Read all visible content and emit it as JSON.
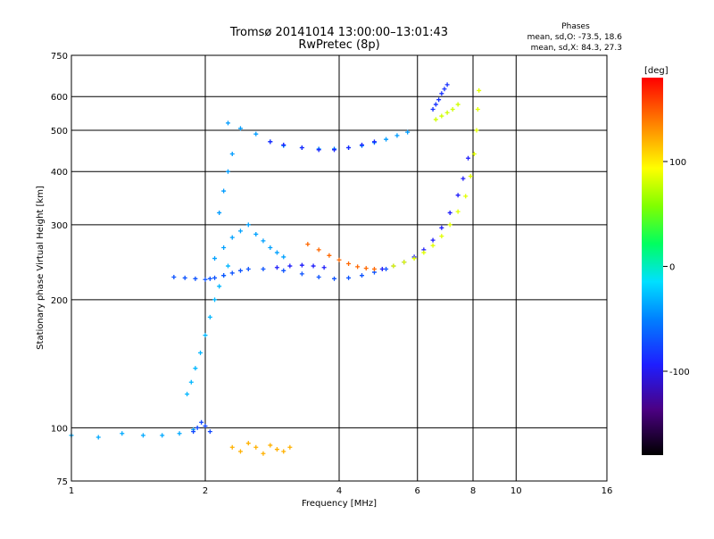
{
  "chart_data": {
    "type": "scatter",
    "title": "Tromsø 20141014 13:00:00–13:01:43",
    "subtitle": "RwPretec (8p)",
    "xlabel": "Frequency [MHz]",
    "ylabel": "Stationary phase Virtual Height [km]",
    "x_scale": "log",
    "y_scale": "log",
    "xlim": [
      1,
      16
    ],
    "ylim": [
      75,
      750
    ],
    "grid": true,
    "x_ticks": [
      "1",
      "2",
      "4",
      "6",
      "8",
      "10",
      "16"
    ],
    "x_tick_values": [
      1,
      2,
      4,
      6,
      8,
      10,
      16
    ],
    "y_ticks": [
      "75",
      "100",
      "200",
      "300",
      "400",
      "500",
      "600",
      "750"
    ],
    "y_tick_values": [
      75,
      100,
      200,
      300,
      400,
      500,
      600,
      750
    ],
    "phases_info": {
      "heading": "Phases",
      "line1": "mean, sd,O: -73.5, 18.6",
      "line2": "mean, sd,X:  84.3, 27.3"
    },
    "colorbar": {
      "label": "[deg]",
      "range": [
        -180,
        180
      ],
      "ticks": [
        "100",
        "0",
        "-100"
      ],
      "tick_values": [
        100,
        0,
        -100
      ]
    },
    "trace_groups": [
      {
        "x": [
          1.0,
          1.15,
          1.3,
          1.45,
          1.6,
          1.75,
          1.88
        ],
        "y": [
          96,
          95,
          97,
          96,
          96,
          97,
          99
        ],
        "phase": -35
      },
      {
        "x": [
          1.88,
          1.92,
          1.96,
          2.0,
          2.05
        ],
        "y": [
          98,
          100,
          103,
          101,
          98
        ],
        "phase": -75
      },
      {
        "x": [
          1.82,
          1.86,
          1.9,
          1.95,
          2.0,
          2.05,
          2.1,
          2.15,
          2.2,
          2.25
        ],
        "y": [
          120,
          128,
          138,
          150,
          165,
          182,
          200,
          215,
          228,
          240
        ],
        "phase": -30
      },
      {
        "x": [
          2.1,
          2.2,
          2.3,
          2.4,
          2.5,
          2.6,
          2.7,
          2.8,
          2.9,
          3.0
        ],
        "y": [
          250,
          265,
          280,
          290,
          300,
          285,
          275,
          265,
          258,
          252
        ],
        "phase": -38
      },
      {
        "x": [
          2.15,
          2.2,
          2.25,
          2.3
        ],
        "y": [
          320,
          360,
          400,
          440
        ],
        "phase": -40
      },
      {
        "x": [
          2.25,
          2.4,
          2.6,
          2.8,
          3.0,
          3.3,
          3.6,
          3.9,
          4.2,
          4.5,
          4.8,
          5.1,
          5.4,
          5.7
        ],
        "y": [
          520,
          505,
          490,
          470,
          460,
          455,
          452,
          452,
          455,
          460,
          468,
          476,
          486,
          495
        ],
        "phase": -40
      },
      {
        "x": [
          2.8,
          3.0,
          3.3,
          3.6,
          3.9,
          4.2,
          4.5,
          4.8
        ],
        "y": [
          470,
          462,
          455,
          450,
          450,
          455,
          462,
          470
        ],
        "phase": -90
      },
      {
        "x": [
          1.7,
          1.8,
          1.9,
          2.0,
          2.05,
          2.1,
          2.2,
          2.3,
          2.4,
          2.5,
          2.7,
          3.0,
          3.3,
          3.6,
          3.9,
          4.2,
          4.5,
          4.8,
          5.1
        ],
        "y": [
          226,
          225,
          224,
          223,
          224,
          225,
          228,
          231,
          234,
          236,
          236,
          234,
          230,
          226,
          224,
          225,
          228,
          232,
          236
        ],
        "phase": -70
      },
      {
        "x": [
          2.9,
          3.1,
          3.3,
          3.5,
          3.7
        ],
        "y": [
          238,
          240,
          241,
          240,
          238
        ],
        "phase": -95
      },
      {
        "x": [
          3.4,
          3.6,
          3.8,
          4.0,
          4.2,
          4.4,
          4.6,
          4.8
        ],
        "y": [
          270,
          262,
          254,
          248,
          243,
          239,
          237,
          236
        ],
        "phase": 145
      },
      {
        "x": [
          5.0,
          5.3,
          5.6,
          5.9,
          6.2,
          6.5,
          6.8,
          7.1,
          7.4,
          7.6,
          7.8
        ],
        "y": [
          236,
          240,
          245,
          252,
          262,
          276,
          295,
          320,
          352,
          385,
          430
        ],
        "phase": -95
      },
      {
        "x": [
          5.3,
          5.6,
          5.9,
          6.2,
          6.5,
          6.8,
          7.1,
          7.4,
          7.7,
          7.9,
          8.05,
          8.15,
          8.2,
          8.25
        ],
        "y": [
          240,
          245,
          250,
          258,
          268,
          282,
          300,
          322,
          350,
          390,
          440,
          500,
          560,
          620
        ],
        "phase": 85
      },
      {
        "x": [
          6.5,
          6.6,
          6.7,
          6.8,
          6.9,
          7.0
        ],
        "y": [
          560,
          575,
          590,
          610,
          625,
          640
        ],
        "phase": -85
      },
      {
        "x": [
          6.6,
          6.8,
          7.0,
          7.2,
          7.4
        ],
        "y": [
          530,
          540,
          550,
          560,
          575
        ],
        "phase": 80
      },
      {
        "x": [
          2.3,
          2.4,
          2.5,
          2.6,
          2.7,
          2.8,
          2.9,
          3.0,
          3.1
        ],
        "y": [
          90,
          88,
          92,
          90,
          87,
          91,
          89,
          88,
          90
        ],
        "phase": 120
      }
    ]
  }
}
